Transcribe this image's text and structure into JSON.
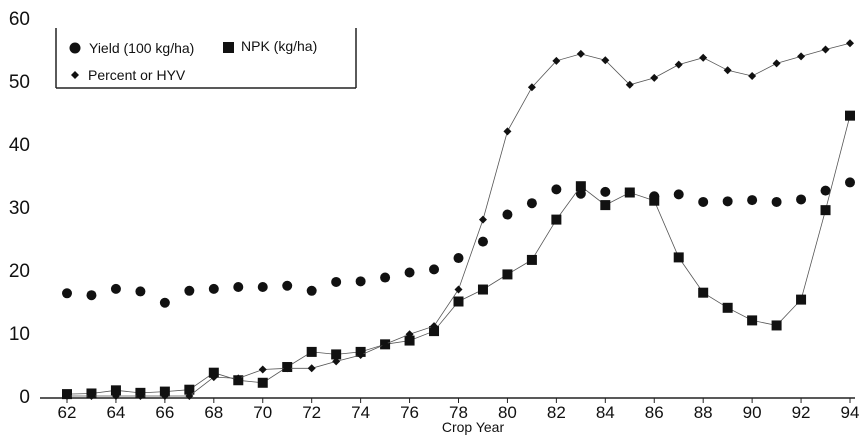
{
  "chart_data": {
    "type": "scatter",
    "xlabel": "Crop Year",
    "ylabel": "",
    "xlim": [
      62,
      94
    ],
    "ylim": [
      0,
      60
    ],
    "yticks": [
      0,
      10,
      20,
      30,
      40,
      50,
      60
    ],
    "xticks": [
      62,
      64,
      66,
      68,
      70,
      72,
      74,
      76,
      78,
      80,
      82,
      84,
      86,
      88,
      90,
      92,
      94
    ],
    "legend": {
      "placement": "top-left",
      "entries": [
        {
          "label": "Yield (100 kg/ha)",
          "marker": "circle"
        },
        {
          "label": "NPK (kg/ha)",
          "marker": "square"
        },
        {
          "label": "Percent or HYV",
          "marker": "diamond"
        }
      ]
    },
    "series": [
      {
        "name": "Yield (100 kg/ha)",
        "marker": "circle",
        "line": false,
        "x": [
          62,
          63,
          64,
          65,
          66,
          67,
          68,
          69,
          70,
          71,
          72,
          73,
          74,
          75,
          76,
          77,
          78,
          79,
          80,
          81,
          82,
          83,
          84,
          85,
          86,
          87,
          88,
          89,
          90,
          91,
          92,
          93,
          94
        ],
        "values": [
          16.3,
          16.0,
          17.0,
          16.6,
          14.8,
          16.7,
          17.0,
          17.3,
          17.3,
          17.5,
          16.7,
          18.1,
          18.2,
          18.8,
          19.6,
          20.1,
          21.9,
          24.5,
          28.8,
          30.6,
          32.8,
          32.1,
          32.4,
          32.3,
          31.7,
          32.0,
          30.8,
          30.9,
          31.1,
          30.8,
          31.2,
          32.6,
          33.9
        ]
      },
      {
        "name": "NPK (kg/ha)",
        "marker": "square",
        "line": true,
        "x": [
          62,
          63,
          64,
          65,
          66,
          67,
          68,
          69,
          70,
          71,
          72,
          73,
          74,
          75,
          76,
          77,
          78,
          79,
          80,
          81,
          82,
          83,
          84,
          85,
          86,
          87,
          88,
          89,
          90,
          91,
          92,
          93,
          94
        ],
        "values": [
          0.3,
          0.4,
          0.9,
          0.5,
          0.7,
          1.0,
          3.7,
          2.5,
          2.1,
          4.6,
          7.0,
          6.6,
          7.0,
          8.2,
          8.8,
          10.3,
          15.0,
          16.9,
          19.3,
          21.6,
          28.0,
          33.3,
          30.3,
          32.3,
          31.0,
          22.0,
          16.4,
          14.0,
          12.0,
          11.2,
          15.3,
          29.5,
          44.5
        ]
      },
      {
        "name": "Percent or HYV",
        "marker": "diamond",
        "line": true,
        "x": [
          62,
          63,
          64,
          65,
          66,
          67,
          68,
          69,
          70,
          71,
          72,
          73,
          74,
          75,
          76,
          77,
          78,
          79,
          80,
          81,
          82,
          83,
          84,
          85,
          86,
          87,
          88,
          89,
          90,
          91,
          92,
          93,
          94
        ],
        "values": [
          0,
          0,
          0,
          0,
          0,
          0,
          3.0,
          2.8,
          4.2,
          4.4,
          4.4,
          5.5,
          6.5,
          8.2,
          9.8,
          11.1,
          16.9,
          28.0,
          42.0,
          49.0,
          53.2,
          54.3,
          53.3,
          49.4,
          50.5,
          52.6,
          53.7,
          51.7,
          50.8,
          52.8,
          53.9,
          55.0,
          56.0
        ]
      }
    ],
    "colors": {
      "ink": "#111111",
      "line": "#555555",
      "background": "#ffffff"
    }
  }
}
